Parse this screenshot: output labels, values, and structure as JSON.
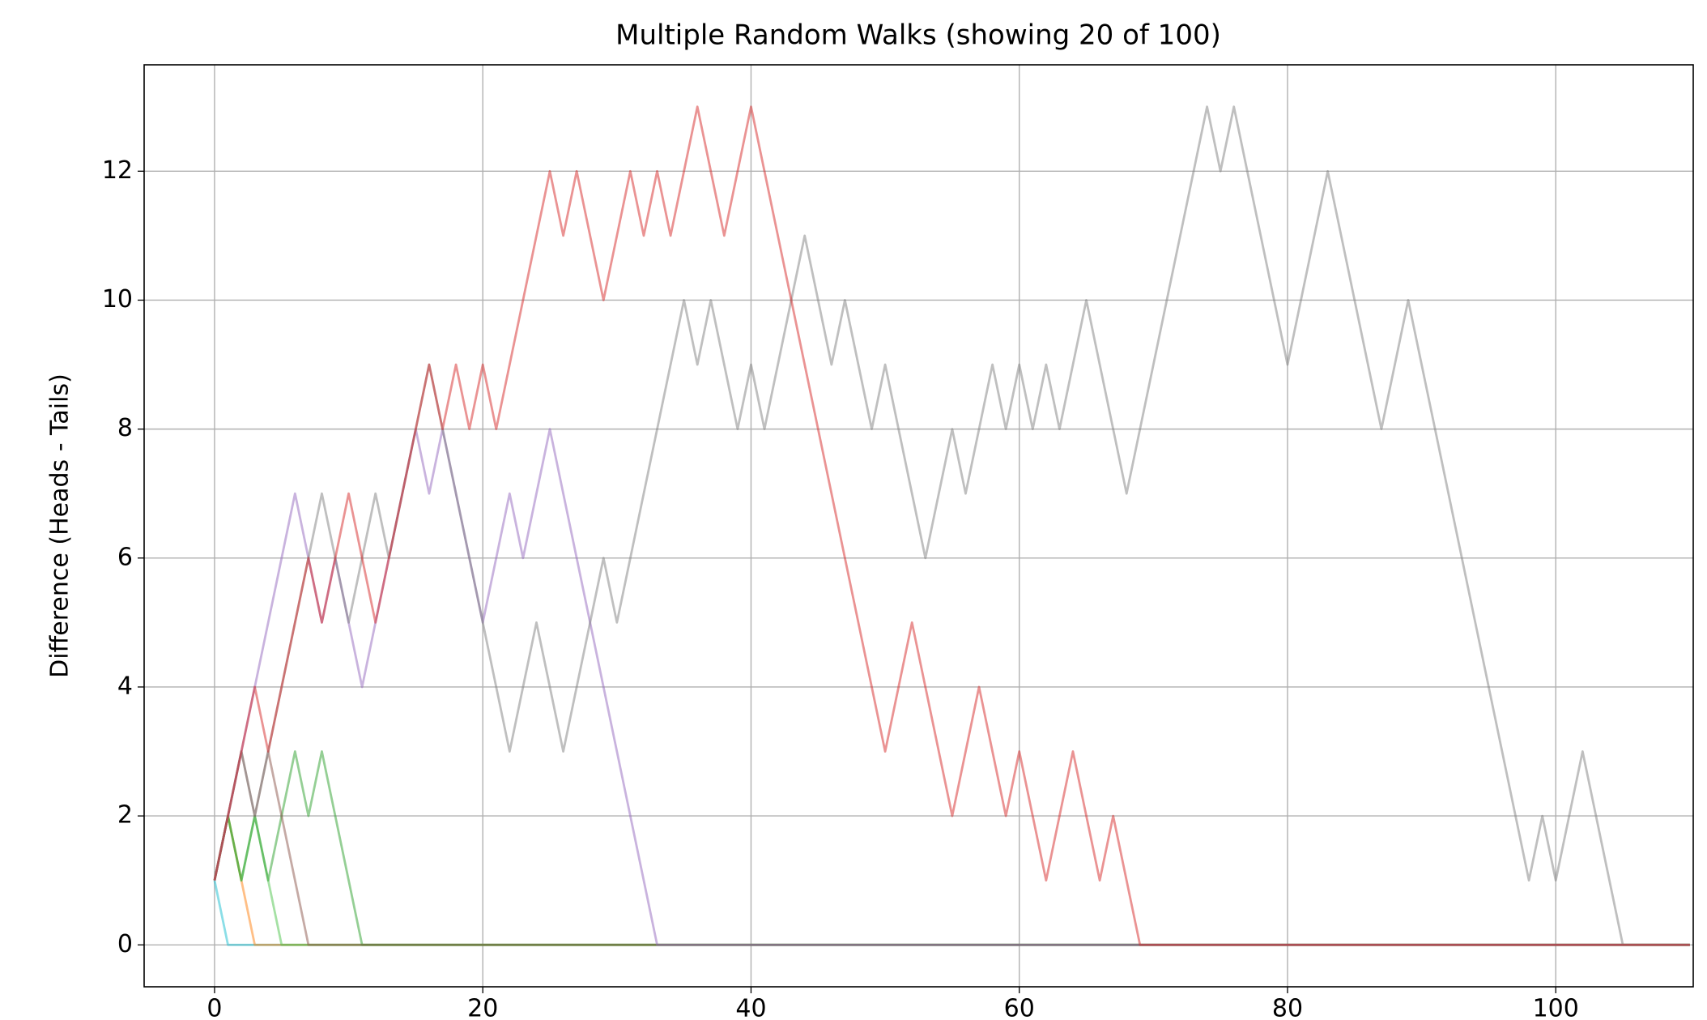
{
  "chart_data": {
    "type": "line",
    "title": "Multiple Random Walks (showing 20 of 100)",
    "y_label": "Difference (Heads - Tails)",
    "xlim": [
      -5.25,
      110.25
    ],
    "ylim": [
      -0.65,
      13.65
    ],
    "xticks": [
      0,
      20,
      40,
      60,
      80,
      100
    ],
    "yticks": [
      0,
      2,
      4,
      6,
      8,
      10,
      12
    ],
    "grid": true,
    "alpha": 0.5,
    "x": [
      0,
      1,
      2,
      3,
      4,
      5,
      6,
      7,
      8,
      9,
      10,
      11,
      12,
      13,
      14,
      15,
      16,
      17,
      18,
      19,
      20,
      21,
      22,
      23,
      24,
      25,
      26,
      27,
      28,
      29,
      30,
      31,
      32,
      33,
      34,
      35,
      36,
      37,
      38,
      39,
      40,
      41,
      42,
      43,
      44,
      45,
      46,
      47,
      48,
      49,
      50,
      51,
      52,
      53,
      54,
      55,
      56,
      57,
      58,
      59,
      60,
      61,
      62,
      63,
      64,
      65,
      66,
      67,
      68,
      69,
      70,
      71,
      72,
      73,
      74,
      75,
      76,
      77,
      78,
      79,
      80,
      81,
      82,
      83,
      84,
      85,
      86,
      87,
      88,
      89,
      90,
      91,
      92,
      93,
      94,
      95,
      96,
      97,
      98,
      99,
      100,
      101,
      102,
      103,
      104,
      105,
      106,
      107,
      108,
      109,
      110
    ],
    "series": [
      {
        "color": "#17becf",
        "values": [
          1,
          0,
          0,
          0,
          0,
          0,
          0,
          0,
          0,
          0,
          0,
          0,
          0,
          0,
          0,
          0,
          0,
          0,
          0,
          0,
          0,
          0,
          0,
          0,
          0,
          0,
          0,
          0,
          0,
          0,
          0,
          0,
          0,
          0,
          0,
          0,
          0,
          0,
          0,
          0,
          0,
          0,
          0,
          0,
          0,
          0,
          0,
          0,
          0,
          0,
          0,
          0,
          0,
          0,
          0,
          0,
          0,
          0,
          0,
          0,
          0,
          0,
          0,
          0,
          0,
          0,
          0,
          0,
          0,
          0,
          0,
          0,
          0,
          0,
          0,
          0,
          0,
          0,
          0,
          0,
          0,
          0,
          0,
          0,
          0,
          0,
          0,
          0,
          0,
          0,
          0,
          0,
          0,
          0,
          0,
          0,
          0,
          0,
          0,
          0,
          0,
          0,
          0,
          0,
          0,
          0,
          0,
          0,
          0,
          0,
          0
        ]
      },
      {
        "color": "#ff7f0e",
        "values": [
          1,
          2,
          1,
          0,
          0,
          0,
          0,
          0,
          0,
          0,
          0,
          0,
          0,
          0,
          0,
          0,
          0,
          0,
          0,
          0,
          0,
          0,
          0,
          0,
          0,
          0,
          0,
          0,
          0,
          0,
          0,
          0,
          0,
          0,
          0,
          0,
          0,
          0,
          0,
          0,
          0,
          0,
          0,
          0,
          0,
          0,
          0,
          0,
          0,
          0,
          0,
          0,
          0,
          0,
          0,
          0,
          0,
          0,
          0,
          0,
          0,
          0,
          0,
          0,
          0,
          0,
          0,
          0,
          0,
          0,
          0,
          0,
          0,
          0,
          0,
          0,
          0,
          0,
          0,
          0,
          0,
          0,
          0,
          0,
          0,
          0,
          0,
          0,
          0,
          0,
          0,
          0,
          0,
          0,
          0,
          0,
          0,
          0,
          0,
          0,
          0,
          0,
          0,
          0,
          0,
          0,
          0,
          0,
          0,
          0,
          0
        ]
      },
      {
        "color": "#4cc34a",
        "values": [
          1,
          2,
          1,
          2,
          1,
          0,
          0,
          0,
          0,
          0,
          0,
          0,
          0,
          0,
          0,
          0,
          0,
          0,
          0,
          0,
          0,
          0,
          0,
          0,
          0,
          0,
          0,
          0,
          0,
          0,
          0,
          0,
          0,
          0,
          0,
          0,
          0,
          0,
          0,
          0,
          0,
          0,
          0,
          0,
          0,
          0,
          0,
          0,
          0,
          0,
          0,
          0,
          0,
          0,
          0,
          0,
          0,
          0,
          0,
          0,
          0,
          0,
          0,
          0,
          0,
          0,
          0,
          0,
          0,
          0,
          0,
          0,
          0,
          0,
          0,
          0,
          0,
          0,
          0,
          0,
          0,
          0,
          0,
          0,
          0,
          0,
          0,
          0,
          0,
          0,
          0,
          0,
          0,
          0,
          0,
          0,
          0,
          0,
          0,
          0,
          0,
          0,
          0,
          0,
          0,
          0,
          0,
          0,
          0,
          0,
          0
        ]
      },
      {
        "color": "#2ca02c",
        "values": [
          1,
          2,
          1,
          2,
          1,
          2,
          3,
          2,
          3,
          2,
          1,
          0,
          0,
          0,
          0,
          0,
          0,
          0,
          0,
          0,
          0,
          0,
          0,
          0,
          0,
          0,
          0,
          0,
          0,
          0,
          0,
          0,
          0,
          0,
          0,
          0,
          0,
          0,
          0,
          0,
          0,
          0,
          0,
          0,
          0,
          0,
          0,
          0,
          0,
          0,
          0,
          0,
          0,
          0,
          0,
          0,
          0,
          0,
          0,
          0,
          0,
          0,
          0,
          0,
          0,
          0,
          0,
          0,
          0,
          0,
          0,
          0,
          0,
          0,
          0,
          0,
          0,
          0,
          0,
          0,
          0,
          0,
          0,
          0,
          0,
          0,
          0,
          0,
          0,
          0,
          0,
          0,
          0,
          0,
          0,
          0,
          0,
          0,
          0,
          0,
          0,
          0,
          0,
          0,
          0,
          0,
          0,
          0,
          0,
          0,
          0
        ]
      },
      {
        "color": "#8c564b",
        "values": [
          1,
          2,
          3,
          2,
          3,
          2,
          1,
          0,
          0,
          0,
          0,
          0,
          0,
          0,
          0,
          0,
          0,
          0,
          0,
          0,
          0,
          0,
          0,
          0,
          0,
          0,
          0,
          0,
          0,
          0,
          0,
          0,
          0,
          0,
          0,
          0,
          0,
          0,
          0,
          0,
          0,
          0,
          0,
          0,
          0,
          0,
          0,
          0,
          0,
          0,
          0,
          0,
          0,
          0,
          0,
          0,
          0,
          0,
          0,
          0,
          0,
          0,
          0,
          0,
          0,
          0,
          0,
          0,
          0,
          0,
          0,
          0,
          0,
          0,
          0,
          0,
          0,
          0,
          0,
          0,
          0,
          0,
          0,
          0,
          0,
          0,
          0,
          0,
          0,
          0,
          0,
          0,
          0,
          0,
          0,
          0,
          0,
          0,
          0,
          0,
          0,
          0,
          0,
          0,
          0,
          0,
          0,
          0,
          0,
          0,
          0
        ]
      },
      {
        "color": "#9467bd",
        "values": [
          1,
          2,
          3,
          4,
          5,
          6,
          7,
          6,
          5,
          6,
          5,
          4,
          5,
          6,
          7,
          8,
          7,
          8,
          7,
          6,
          5,
          6,
          7,
          6,
          7,
          8,
          7,
          6,
          5,
          4,
          3,
          2,
          1,
          0,
          0,
          0,
          0,
          0,
          0,
          0,
          0,
          0,
          0,
          0,
          0,
          0,
          0,
          0,
          0,
          0,
          0,
          0,
          0,
          0,
          0,
          0,
          0,
          0,
          0,
          0,
          0,
          0,
          0,
          0,
          0,
          0,
          0,
          0,
          0,
          0,
          0,
          0,
          0,
          0,
          0,
          0,
          0,
          0,
          0,
          0,
          0,
          0,
          0,
          0,
          0,
          0,
          0,
          0,
          0,
          0,
          0,
          0,
          0,
          0,
          0,
          0,
          0,
          0,
          0,
          0,
          0,
          0,
          0,
          0,
          0,
          0,
          0,
          0,
          0,
          0,
          0
        ]
      },
      {
        "color": "#7f7f7f",
        "values": [
          1,
          2,
          3,
          2,
          3,
          4,
          5,
          6,
          7,
          6,
          5,
          6,
          7,
          6,
          7,
          8,
          9,
          8,
          7,
          6,
          5,
          4,
          3,
          4,
          5,
          4,
          3,
          4,
          5,
          6,
          5,
          6,
          7,
          8,
          9,
          10,
          9,
          10,
          9,
          8,
          9,
          8,
          9,
          10,
          11,
          10,
          9,
          10,
          9,
          8,
          9,
          8,
          7,
          6,
          7,
          8,
          7,
          8,
          9,
          8,
          9,
          8,
          9,
          8,
          9,
          10,
          9,
          8,
          7,
          8,
          9,
          10,
          11,
          12,
          13,
          12,
          13,
          12,
          11,
          10,
          9,
          10,
          11,
          12,
          11,
          10,
          9,
          8,
          9,
          10,
          9,
          8,
          7,
          6,
          5,
          4,
          3,
          2,
          1,
          2,
          1,
          2,
          3,
          2,
          1,
          0,
          0,
          0,
          0,
          0,
          0
        ]
      },
      {
        "color": "#d62728",
        "values": [
          1,
          2,
          3,
          4,
          3,
          4,
          5,
          6,
          5,
          6,
          7,
          6,
          5,
          6,
          7,
          8,
          9,
          8,
          9,
          8,
          9,
          8,
          9,
          10,
          11,
          12,
          11,
          12,
          11,
          10,
          11,
          12,
          11,
          12,
          11,
          12,
          13,
          12,
          11,
          12,
          13,
          12,
          11,
          10,
          9,
          8,
          7,
          6,
          5,
          4,
          3,
          4,
          5,
          4,
          3,
          2,
          3,
          4,
          3,
          2,
          3,
          2,
          1,
          2,
          3,
          2,
          1,
          2,
          1,
          0,
          0,
          0,
          0,
          0,
          0,
          0,
          0,
          0,
          0,
          0,
          0,
          0,
          0,
          0,
          0,
          0,
          0,
          0,
          0,
          0,
          0,
          0,
          0,
          0,
          0,
          0,
          0,
          0,
          0,
          0,
          0,
          0,
          0,
          0,
          0,
          0,
          0,
          0,
          0,
          0,
          0
        ]
      }
    ]
  }
}
